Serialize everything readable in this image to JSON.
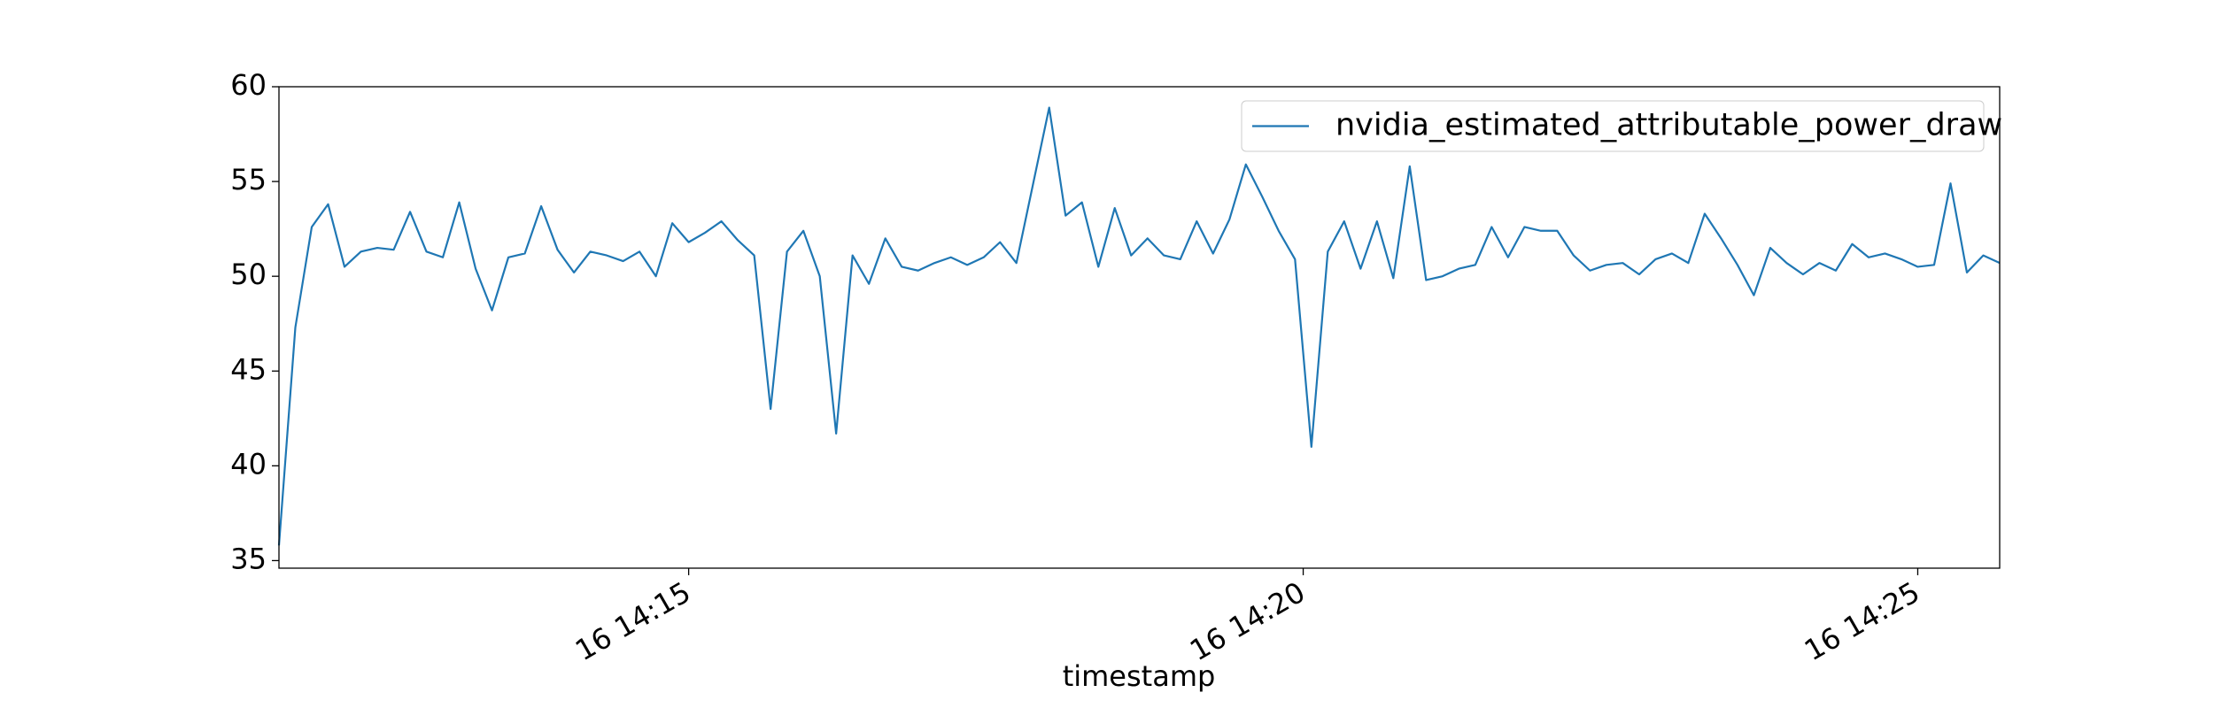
{
  "chart_data": {
    "type": "line",
    "xlabel": "timestamp",
    "x": [
      "14:11:40",
      "14:11:48",
      "14:11:56",
      "14:12:04",
      "14:12:12",
      "14:12:20",
      "14:12:28",
      "14:12:36",
      "14:12:44",
      "14:12:52",
      "14:13:00",
      "14:13:08",
      "14:13:16",
      "14:13:24",
      "14:13:32",
      "14:13:40",
      "14:13:48",
      "14:13:56",
      "14:14:04",
      "14:14:12",
      "14:14:20",
      "14:14:28",
      "14:14:36",
      "14:14:44",
      "14:14:52",
      "14:15:00",
      "14:15:08",
      "14:15:16",
      "14:15:24",
      "14:15:32",
      "14:15:40",
      "14:15:48",
      "14:15:56",
      "14:16:04",
      "14:16:12",
      "14:16:20",
      "14:16:28",
      "14:16:36",
      "14:16:44",
      "14:16:52",
      "14:17:00",
      "14:17:08",
      "14:17:16",
      "14:17:24",
      "14:17:32",
      "14:17:40",
      "14:17:48",
      "14:17:56",
      "14:18:04",
      "14:18:12",
      "14:18:20",
      "14:18:28",
      "14:18:36",
      "14:18:44",
      "14:18:52",
      "14:19:00",
      "14:19:08",
      "14:19:16",
      "14:19:24",
      "14:19:32",
      "14:19:40",
      "14:19:48",
      "14:19:56",
      "14:20:04",
      "14:20:12",
      "14:20:20",
      "14:20:28",
      "14:20:36",
      "14:20:44",
      "14:20:52",
      "14:21:00",
      "14:21:08",
      "14:21:16",
      "14:21:24",
      "14:21:32",
      "14:21:40",
      "14:21:48",
      "14:21:56",
      "14:22:04",
      "14:22:12",
      "14:22:20",
      "14:22:28",
      "14:22:36",
      "14:22:44",
      "14:22:52",
      "14:23:00",
      "14:23:08",
      "14:23:16",
      "14:23:24",
      "14:23:32",
      "14:23:40",
      "14:23:48",
      "14:23:56",
      "14:24:04",
      "14:24:12",
      "14:24:20",
      "14:24:28",
      "14:24:36",
      "14:24:44",
      "14:24:52",
      "14:25:00",
      "14:25:08",
      "14:25:16",
      "14:25:24",
      "14:25:32",
      "14:25:40"
    ],
    "series": [
      {
        "name": "nvidia_estimated_attributable_power_draw",
        "color": "#1f77b4",
        "values": [
          35.8,
          47.3,
          52.6,
          53.8,
          50.5,
          51.3,
          51.5,
          51.4,
          53.4,
          51.3,
          51.0,
          53.9,
          50.4,
          48.2,
          51.0,
          51.2,
          53.7,
          51.4,
          50.2,
          51.3,
          51.1,
          50.8,
          51.3,
          50.0,
          52.8,
          51.8,
          52.3,
          52.9,
          51.9,
          51.1,
          43.0,
          51.3,
          52.4,
          50.0,
          41.7,
          51.1,
          49.6,
          52.0,
          50.5,
          50.3,
          50.7,
          51.0,
          50.6,
          51.0,
          51.8,
          50.7,
          54.8,
          58.9,
          53.2,
          53.9,
          50.5,
          53.6,
          51.1,
          52.0,
          51.1,
          50.9,
          52.9,
          51.2,
          53.0,
          55.9,
          54.2,
          52.4,
          50.9,
          41.0,
          51.3,
          52.9,
          50.4,
          52.9,
          49.9,
          55.8,
          49.8,
          50.0,
          50.4,
          50.6,
          52.6,
          51.0,
          52.6,
          52.4,
          52.4,
          51.1,
          50.3,
          50.6,
          50.7,
          50.1,
          50.9,
          51.2,
          50.7,
          53.3,
          52.0,
          50.6,
          49.0,
          51.5,
          50.7,
          50.1,
          50.7,
          50.3,
          51.7,
          51.0,
          51.2,
          50.9,
          50.5,
          50.6,
          54.9,
          50.2,
          51.1,
          50.7
        ]
      }
    ],
    "xlim": [
      "14:11:40",
      "14:25:40"
    ],
    "xticks": [
      {
        "value": "14:15:00",
        "label": "16 14:15"
      },
      {
        "value": "14:20:00",
        "label": "16 14:20"
      },
      {
        "value": "14:25:00",
        "label": "16 14:25"
      }
    ],
    "ylim": [
      34.6,
      60
    ],
    "yticks": [
      35,
      40,
      45,
      50,
      55,
      60
    ],
    "grid": false,
    "legend": "upper right"
  }
}
